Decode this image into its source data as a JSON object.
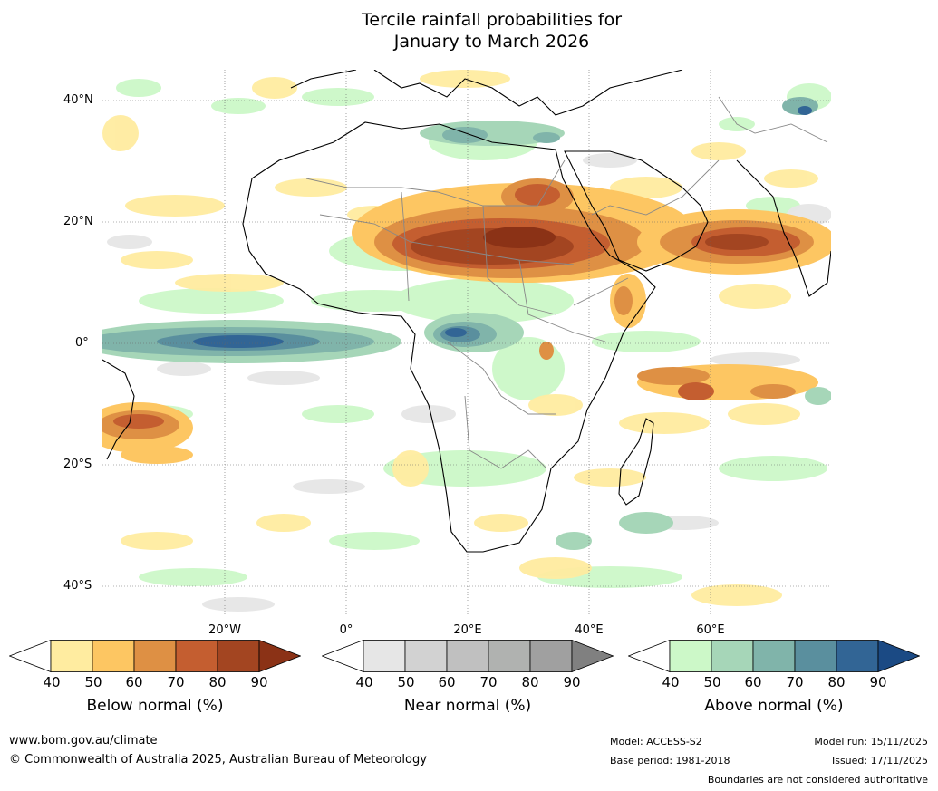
{
  "title": {
    "line1": "Tercile rainfall probabilities for",
    "line2": "January to March 2026"
  },
  "axes": {
    "lat_labels": [
      "40°N",
      "20°N",
      "0°",
      "20°S",
      "40°S"
    ],
    "lon_labels": [
      "20°W",
      "0°",
      "20°E",
      "40°E",
      "60°E"
    ]
  },
  "legends": [
    {
      "label": "Below normal (%)",
      "ticks": [
        "40",
        "50",
        "60",
        "70",
        "80",
        "90"
      ],
      "colors": [
        "#ffffff",
        "#ffeca0",
        "#fdc662",
        "#de9044",
        "#c45e30",
        "#a34521",
        "#8b3216"
      ]
    },
    {
      "label": "Near normal (%)",
      "ticks": [
        "40",
        "50",
        "60",
        "70",
        "80",
        "90"
      ],
      "colors": [
        "#ffffff",
        "#e6e6e6",
        "#d2d2d2",
        "#c0c0c0",
        "#b0b2b0",
        "#a0a0a0",
        "#808080"
      ]
    },
    {
      "label": "Above normal (%)",
      "ticks": [
        "40",
        "50",
        "60",
        "70",
        "80",
        "90"
      ],
      "colors": [
        "#ffffff",
        "#ccf8c8",
        "#a6d6b8",
        "#80b4aa",
        "#5a8f9e",
        "#326595",
        "#1b4a84"
      ]
    }
  ],
  "footer": {
    "website": "www.bom.gov.au/climate",
    "copyright": "© Commonwealth of Australia 2025, Australian Bureau of Meteorology",
    "model": "Model: ACCESS-S2",
    "base_period": "Base period: 1981-2018",
    "model_run": "Model run: 15/11/2025",
    "issued": "Issued: 17/11/2025",
    "disclaimer": "Boundaries are not considered authoritative"
  }
}
